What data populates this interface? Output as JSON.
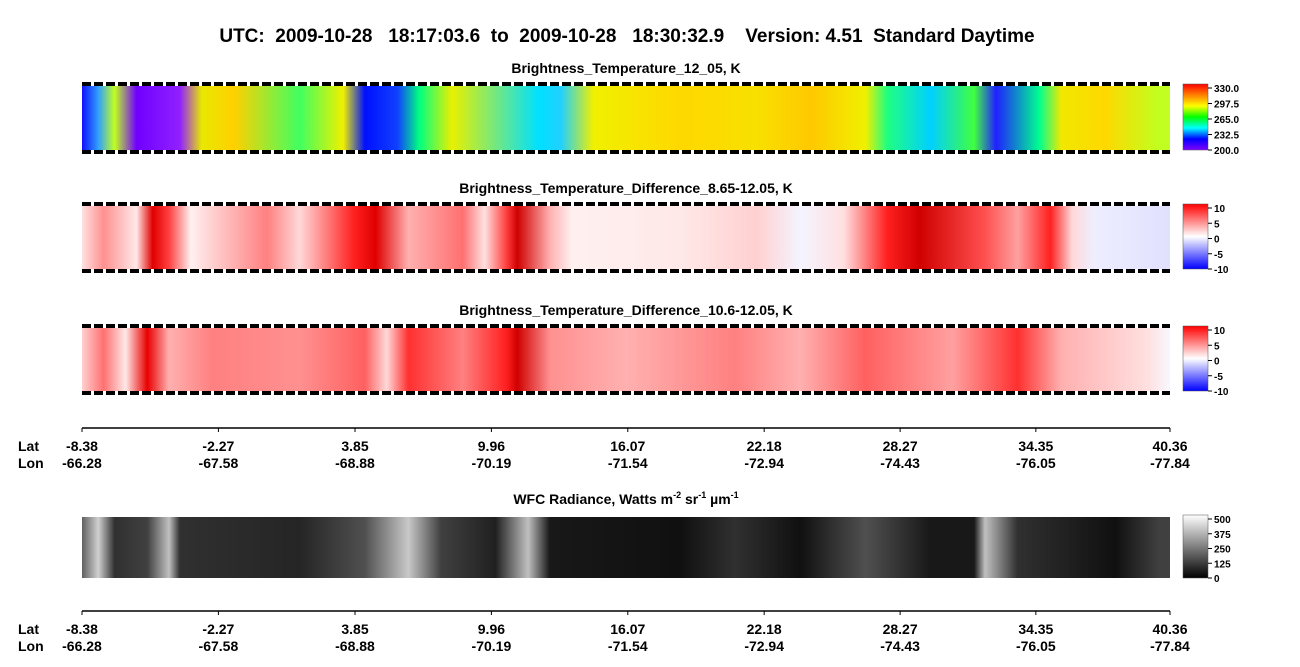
{
  "header": {
    "title": "UTC:  2009-10-28   18:17:03.6  to  2009-10-28   18:30:32.9    Version: 4.51  Standard Daytime"
  },
  "chart_data": [
    {
      "type": "image",
      "title": "Brightness_Temperature_12_05, K",
      "ylim": [
        200,
        330
      ],
      "yticks": [
        {
          "value": 330,
          "label": "330.0"
        },
        {
          "value": 297.5,
          "label": "297.5"
        },
        {
          "value": 265,
          "label": "265.0"
        },
        {
          "value": 232.5,
          "label": "232.5"
        },
        {
          "value": 200,
          "label": "200.0"
        }
      ],
      "colors": [
        "#8000ff",
        "#0000ff",
        "#00ffff",
        "#00ff00",
        "#ffff00",
        "#ff8000",
        "#ff0000"
      ]
    },
    {
      "type": "image",
      "title": "Brightness_Temperature_Difference_8.65-12.05, K",
      "ylim": [
        -10,
        10
      ],
      "yticks": [
        10,
        5,
        0,
        -5,
        -10
      ],
      "colors": [
        "#0000ff",
        "#ffffff",
        "#ff0000"
      ]
    },
    {
      "type": "image",
      "title": "Brightness_Temperature_Difference_10.6-12.05, K",
      "ylim": [
        -10,
        10
      ],
      "yticks": [
        10,
        5,
        0,
        -5,
        -10
      ],
      "colors": [
        "#0000ff",
        "#ffffff",
        "#ff0000"
      ]
    },
    {
      "type": "axis",
      "row_labels": [
        "Lat",
        "Lon"
      ],
      "xlim": [
        -8.38,
        40.36
      ],
      "lat": [
        -8.38,
        -2.27,
        3.85,
        9.96,
        16.07,
        22.18,
        28.27,
        34.35,
        40.36
      ],
      "lon": [
        -66.28,
        -67.58,
        -68.88,
        -70.19,
        -71.54,
        -72.94,
        -74.43,
        -76.05,
        -77.84
      ]
    },
    {
      "type": "image",
      "title_parts": [
        "WFC Radiance, Watts m",
        "-2",
        " sr",
        "-1",
        " µm",
        "-1"
      ],
      "ylim": [
        0,
        500
      ],
      "yticks": [
        500,
        375,
        250,
        125,
        0
      ],
      "colors": [
        "#000000",
        "#ffffff"
      ]
    },
    {
      "type": "axis",
      "row_labels": [
        "Lat",
        "Lon"
      ],
      "xlim": [
        -8.38,
        40.36
      ],
      "lat": [
        -8.38,
        -2.27,
        3.85,
        9.96,
        16.07,
        22.18,
        28.27,
        34.35,
        40.36
      ],
      "lon": [
        -66.28,
        -67.58,
        -68.88,
        -70.19,
        -71.54,
        -72.94,
        -74.43,
        -76.05,
        -77.84
      ]
    }
  ]
}
